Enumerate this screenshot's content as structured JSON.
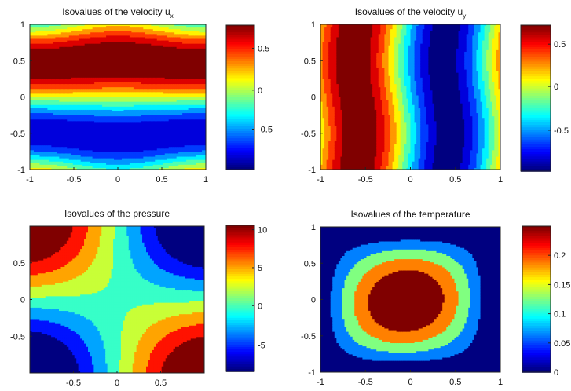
{
  "chart_data": [
    {
      "type": "heatmap",
      "title": "Isovalues of the velocity u",
      "title_subscript": "x",
      "field": "velocity_ux",
      "xlim": [
        -1,
        1
      ],
      "ylim": [
        -1,
        1
      ],
      "xticks": [
        "-1",
        "-0.5",
        "0",
        "0.5",
        "1"
      ],
      "yticks": [
        "1",
        "0.5",
        "0",
        "-0.5",
        "-1"
      ],
      "colorbar_range": [
        -1,
        0.8
      ],
      "colorbar_ticks": [
        "0.5",
        "0",
        "-0.5"
      ],
      "n_contour_levels": 12
    },
    {
      "type": "heatmap",
      "title": "Isovalues of the velocity u",
      "title_subscript": "y",
      "field": "velocity_uy",
      "xlim": [
        -1,
        1
      ],
      "ylim": [
        -1,
        1
      ],
      "xticks": [
        "-1",
        "-0.5",
        "0",
        "0.5",
        "1"
      ],
      "yticks": [
        "1",
        "0.5",
        "0",
        "-0.5",
        "-1"
      ],
      "colorbar_range": [
        -1,
        0.95
      ],
      "colorbar_ticks": [
        "0.5",
        "0",
        "-0.5"
      ],
      "n_contour_levels": 12
    },
    {
      "type": "heatmap",
      "title": "Isovalues of the pressure",
      "title_subscript": "",
      "field": "pressure",
      "xlim": [
        -1,
        1
      ],
      "ylim": [
        -1,
        1
      ],
      "xticks": [
        "-0.5",
        "0",
        "0.5"
      ],
      "yticks": [
        "0.5",
        "0",
        "-0.5"
      ],
      "colorbar_range": [
        -9,
        10
      ],
      "colorbar_ticks": [
        "10",
        "5",
        "0",
        "-5"
      ],
      "n_contour_levels": 8
    },
    {
      "type": "heatmap",
      "title": "Isovalues of the temperature",
      "title_subscript": "",
      "field": "temperature",
      "xlim": [
        -1,
        1
      ],
      "ylim": [
        -1,
        1
      ],
      "xticks": [
        "-1",
        "-0.5",
        "0",
        "0.5",
        "1"
      ],
      "yticks": [
        "1",
        "0.5",
        "0",
        "-0.5",
        "-1"
      ],
      "colorbar_range": [
        0,
        0.25
      ],
      "colorbar_ticks": [
        "0.2",
        "0.15",
        "0.1",
        "0.05",
        "0"
      ],
      "n_contour_levels": 5
    }
  ]
}
